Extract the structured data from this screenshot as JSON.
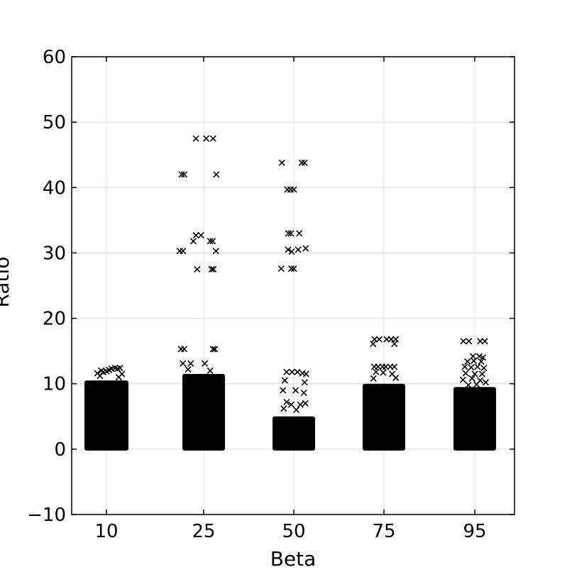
{
  "chart_data": {
    "type": "scatter",
    "title": "",
    "xlabel": "Beta",
    "ylabel": "Ratio",
    "ylim": [
      -10,
      60
    ],
    "yticks": [
      "−10",
      "0",
      "10",
      "20",
      "30",
      "40",
      "50",
      "60"
    ],
    "categories": [
      "10",
      "25",
      "50",
      "75",
      "95"
    ],
    "grid": true,
    "marker": "x",
    "marker_color": "#000000",
    "groups": [
      {
        "category": "10",
        "dense_range": [
          0,
          10.5
        ],
        "points": [
          {
            "x": 9.2,
            "y": 12.0
          },
          {
            "x": 9.5,
            "y": 11.8
          },
          {
            "x": 10.0,
            "y": 11.9
          },
          {
            "x": 10.4,
            "y": 12.1
          },
          {
            "x": 10.8,
            "y": 12.3
          },
          {
            "x": 11.3,
            "y": 12.4
          },
          {
            "x": 11.7,
            "y": 12.3
          },
          {
            "x": 12.1,
            "y": 12.4
          },
          {
            "x": 8.6,
            "y": 11.6
          },
          {
            "x": 12.4,
            "y": 11.5
          },
          {
            "x": 9.0,
            "y": 11.2
          },
          {
            "x": 11.9,
            "y": 11.0
          }
        ]
      },
      {
        "category": "25",
        "dense_range": [
          0,
          11.5
        ],
        "points": [
          {
            "x": 23.8,
            "y": 47.5
          },
          {
            "x": 25.7,
            "y": 47.5
          },
          {
            "x": 27.6,
            "y": 47.5
          },
          {
            "x": 21.6,
            "y": 42.0
          },
          {
            "x": 22.0,
            "y": 42.0
          },
          {
            "x": 28.5,
            "y": 42.0
          },
          {
            "x": 23.8,
            "y": 32.7
          },
          {
            "x": 24.6,
            "y": 32.7
          },
          {
            "x": 23.4,
            "y": 31.8
          },
          {
            "x": 26.8,
            "y": 31.8
          },
          {
            "x": 27.5,
            "y": 31.8
          },
          {
            "x": 21.3,
            "y": 30.3
          },
          {
            "x": 21.8,
            "y": 30.3
          },
          {
            "x": 28.4,
            "y": 30.3
          },
          {
            "x": 24.0,
            "y": 27.5
          },
          {
            "x": 27.2,
            "y": 27.5
          },
          {
            "x": 27.7,
            "y": 27.5
          },
          {
            "x": 21.5,
            "y": 15.3
          },
          {
            "x": 22.0,
            "y": 15.3
          },
          {
            "x": 27.6,
            "y": 15.3
          },
          {
            "x": 28.1,
            "y": 15.3
          },
          {
            "x": 21.8,
            "y": 13.1
          },
          {
            "x": 23.0,
            "y": 13.1
          },
          {
            "x": 25.3,
            "y": 13.1
          },
          {
            "x": 26.8,
            "y": 12.0
          },
          {
            "x": 22.6,
            "y": 12.2
          }
        ]
      },
      {
        "category": "50",
        "dense_range": [
          0,
          5.0
        ],
        "points": [
          {
            "x": 46.7,
            "y": 43.8
          },
          {
            "x": 52.2,
            "y": 43.8
          },
          {
            "x": 53.0,
            "y": 43.8
          },
          {
            "x": 48.2,
            "y": 39.7
          },
          {
            "x": 49.1,
            "y": 39.7
          },
          {
            "x": 50.0,
            "y": 39.7
          },
          {
            "x": 48.5,
            "y": 33.0
          },
          {
            "x": 49.2,
            "y": 33.0
          },
          {
            "x": 51.5,
            "y": 33.0
          },
          {
            "x": 48.4,
            "y": 30.5
          },
          {
            "x": 49.4,
            "y": 30.2
          },
          {
            "x": 51.2,
            "y": 30.5
          },
          {
            "x": 53.3,
            "y": 30.7
          },
          {
            "x": 46.5,
            "y": 27.6
          },
          {
            "x": 49.3,
            "y": 27.6
          },
          {
            "x": 50.0,
            "y": 27.6
          },
          {
            "x": 48.0,
            "y": 11.8
          },
          {
            "x": 49.5,
            "y": 11.8
          },
          {
            "x": 51.0,
            "y": 11.8
          },
          {
            "x": 52.4,
            "y": 11.6
          },
          {
            "x": 53.4,
            "y": 11.5
          },
          {
            "x": 47.5,
            "y": 10.5
          },
          {
            "x": 53.0,
            "y": 10.2
          },
          {
            "x": 47.0,
            "y": 9.0
          },
          {
            "x": 50.5,
            "y": 9.0
          },
          {
            "x": 52.8,
            "y": 8.6
          },
          {
            "x": 48.0,
            "y": 7.2
          },
          {
            "x": 49.3,
            "y": 6.8
          },
          {
            "x": 51.8,
            "y": 6.8
          },
          {
            "x": 53.2,
            "y": 7.0
          },
          {
            "x": 47.2,
            "y": 6.2
          },
          {
            "x": 50.7,
            "y": 6.0
          }
        ]
      },
      {
        "category": "75",
        "dense_range": [
          0,
          10.0
        ],
        "points": [
          {
            "x": 72.4,
            "y": 16.8
          },
          {
            "x": 73.7,
            "y": 16.8
          },
          {
            "x": 75.6,
            "y": 16.8
          },
          {
            "x": 76.6,
            "y": 16.8
          },
          {
            "x": 77.6,
            "y": 16.8
          },
          {
            "x": 72.0,
            "y": 16.1
          },
          {
            "x": 77.3,
            "y": 16.1
          },
          {
            "x": 72.3,
            "y": 12.6
          },
          {
            "x": 73.4,
            "y": 12.6
          },
          {
            "x": 74.6,
            "y": 12.6
          },
          {
            "x": 75.4,
            "y": 12.6
          },
          {
            "x": 76.4,
            "y": 12.6
          },
          {
            "x": 77.3,
            "y": 12.6
          },
          {
            "x": 72.8,
            "y": 11.8
          },
          {
            "x": 74.8,
            "y": 11.7
          },
          {
            "x": 76.8,
            "y": 11.5
          },
          {
            "x": 72.1,
            "y": 10.8
          },
          {
            "x": 77.6,
            "y": 10.9
          }
        ]
      },
      {
        "category": "95",
        "dense_range": [
          0,
          9.5
        ],
        "points": [
          {
            "x": 92.5,
            "y": 16.5
          },
          {
            "x": 93.7,
            "y": 16.5
          },
          {
            "x": 96.2,
            "y": 16.5
          },
          {
            "x": 97.2,
            "y": 16.5
          },
          {
            "x": 94.6,
            "y": 14.2
          },
          {
            "x": 96.0,
            "y": 14.2
          },
          {
            "x": 96.8,
            "y": 14.0
          },
          {
            "x": 93.4,
            "y": 13.4
          },
          {
            "x": 94.8,
            "y": 13.5
          },
          {
            "x": 96.4,
            "y": 13.4
          },
          {
            "x": 92.8,
            "y": 12.6
          },
          {
            "x": 94.2,
            "y": 12.5
          },
          {
            "x": 95.6,
            "y": 12.6
          },
          {
            "x": 97.0,
            "y": 12.4
          },
          {
            "x": 93.0,
            "y": 11.6
          },
          {
            "x": 95.0,
            "y": 11.5
          },
          {
            "x": 96.6,
            "y": 11.5
          },
          {
            "x": 92.4,
            "y": 10.6
          },
          {
            "x": 94.4,
            "y": 10.8
          },
          {
            "x": 96.2,
            "y": 10.5
          },
          {
            "x": 97.4,
            "y": 10.2
          },
          {
            "x": 93.6,
            "y": 9.8
          },
          {
            "x": 95.4,
            "y": 9.9
          }
        ]
      }
    ]
  }
}
